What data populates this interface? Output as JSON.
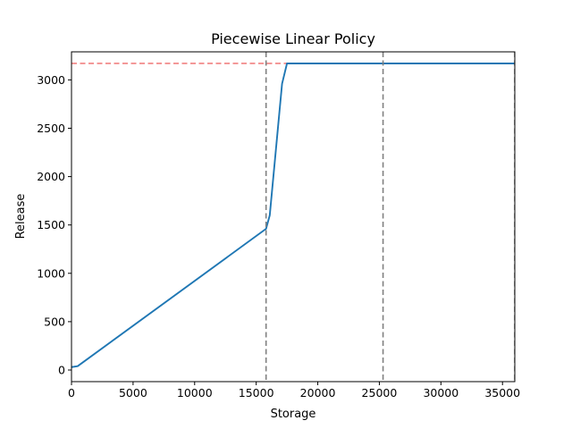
{
  "chart_data": {
    "type": "line",
    "title": "Piecewise Linear Policy",
    "xlabel": "Storage",
    "ylabel": "Release",
    "xlim": [
      0,
      36000
    ],
    "ylim": [
      -120,
      3290
    ],
    "xticks": [
      0,
      5000,
      10000,
      15000,
      20000,
      25000,
      30000,
      35000
    ],
    "xtick_labels": [
      "0",
      "5000",
      "10000",
      "15000",
      "20000",
      "25000",
      "30000",
      "35000"
    ],
    "yticks": [
      0,
      500,
      1000,
      1500,
      2000,
      2500,
      3000
    ],
    "ytick_labels": [
      "0",
      "500",
      "1000",
      "1500",
      "2000",
      "2500",
      "3000"
    ],
    "grid": false,
    "series": [
      {
        "color": "#1f77b4",
        "x": [
          0,
          500,
          15800,
          16100,
          17100,
          17500,
          25300,
          36000
        ],
        "y": [
          30,
          40,
          1460,
          1600,
          2960,
          3170,
          3170,
          3170
        ]
      }
    ],
    "hlines": [
      {
        "y": 3170,
        "color": "#f08080",
        "style": "dashed"
      }
    ],
    "vlines": [
      {
        "x": 15800,
        "color": "#808080",
        "style": "dashed"
      },
      {
        "x": 25300,
        "color": "#808080",
        "style": "dashed"
      },
      {
        "x": 36000,
        "color": "#808080",
        "style": "dashed"
      }
    ]
  }
}
